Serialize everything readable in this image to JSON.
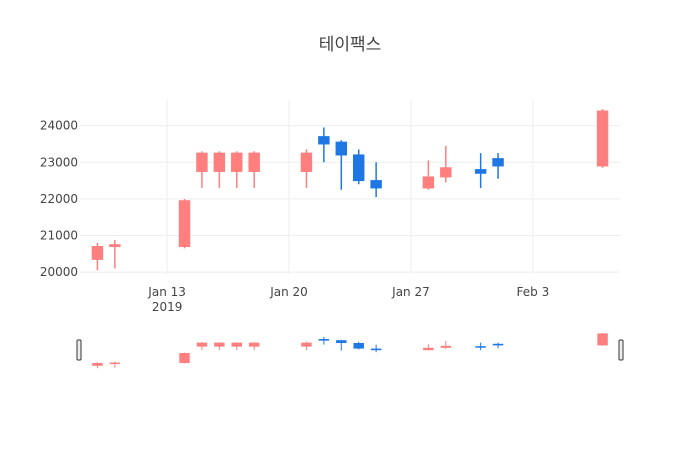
{
  "chart_data": {
    "type": "candlestick",
    "title": "테이팩스",
    "x_ticks": [
      {
        "date": "2019-01-13",
        "label": "Jan 13",
        "sublabel": "2019"
      },
      {
        "date": "2019-01-20",
        "label": "Jan 20",
        "sublabel": ""
      },
      {
        "date": "2019-01-27",
        "label": "Jan 27",
        "sublabel": ""
      },
      {
        "date": "2019-02-03",
        "label": "Feb 3",
        "sublabel": ""
      }
    ],
    "y_ticks": [
      {
        "value": 20000,
        "label": "20000"
      },
      {
        "value": 21000,
        "label": "21000"
      },
      {
        "value": 22000,
        "label": "22000"
      },
      {
        "value": 23000,
        "label": "23000"
      },
      {
        "value": 24000,
        "label": "24000"
      }
    ],
    "xlim": [
      "2019-01-08",
      "2019-02-08"
    ],
    "ylim": [
      19950,
      24700
    ],
    "range_slider": true,
    "grid": true,
    "colors": {
      "increasing": "#ff7f7f",
      "decreasing": "#1f77e4",
      "grid": "#eeeeee",
      "text": "#444444"
    },
    "candles": [
      {
        "date": "2019-01-09",
        "open": 20350,
        "high": 20800,
        "low": 20050,
        "close": 20700
      },
      {
        "date": "2019-01-10",
        "open": 20700,
        "high": 20880,
        "low": 20100,
        "close": 20750
      },
      {
        "date": "2019-01-14",
        "open": 20700,
        "high": 22000,
        "low": 20650,
        "close": 21950
      },
      {
        "date": "2019-01-15",
        "open": 22750,
        "high": 23300,
        "low": 22300,
        "close": 23250
      },
      {
        "date": "2019-01-16",
        "open": 22750,
        "high": 23300,
        "low": 22300,
        "close": 23250
      },
      {
        "date": "2019-01-17",
        "open": 22750,
        "high": 23300,
        "low": 22300,
        "close": 23250
      },
      {
        "date": "2019-01-18",
        "open": 22750,
        "high": 23300,
        "low": 22300,
        "close": 23250
      },
      {
        "date": "2019-01-21",
        "open": 22750,
        "high": 23350,
        "low": 22300,
        "close": 23250
      },
      {
        "date": "2019-01-22",
        "open": 23700,
        "high": 23950,
        "low": 23000,
        "close": 23500
      },
      {
        "date": "2019-01-23",
        "open": 23550,
        "high": 23600,
        "low": 22250,
        "close": 23200
      },
      {
        "date": "2019-01-24",
        "open": 23200,
        "high": 23350,
        "low": 22400,
        "close": 22500
      },
      {
        "date": "2019-01-25",
        "open": 22500,
        "high": 23000,
        "low": 22050,
        "close": 22300
      },
      {
        "date": "2019-01-28",
        "open": 22300,
        "high": 23050,
        "low": 22250,
        "close": 22600
      },
      {
        "date": "2019-01-29",
        "open": 22600,
        "high": 23450,
        "low": 22450,
        "close": 22850
      },
      {
        "date": "2019-01-31",
        "open": 22800,
        "high": 23250,
        "low": 22300,
        "close": 22700
      },
      {
        "date": "2019-02-01",
        "open": 23100,
        "high": 23250,
        "low": 22550,
        "close": 22900
      },
      {
        "date": "2019-02-07",
        "open": 22900,
        "high": 24450,
        "low": 22850,
        "close": 24400
      }
    ]
  }
}
